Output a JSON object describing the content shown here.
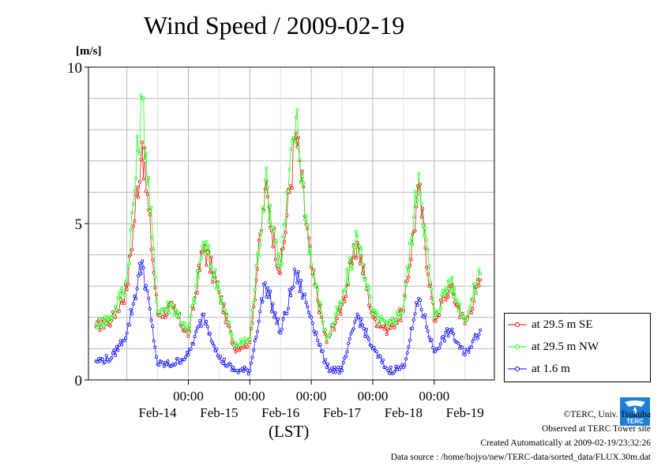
{
  "chart_data": {
    "type": "line",
    "title": "Wind Speed / 2009-02-19",
    "ylabel": "[m/s]",
    "xlabel": "(LST)",
    "ylim": [
      0,
      10
    ],
    "yticks": [
      "0",
      "5",
      "10"
    ],
    "xticks_time": [
      "00:00",
      "00:00",
      "00:00",
      "00:00",
      "00:00"
    ],
    "xticks_date": [
      "Feb-14",
      "Feb-15",
      "Feb-16",
      "Feb-17",
      "Feb-18",
      "Feb-19"
    ],
    "grid": true,
    "legend_position": "right",
    "x": [
      "Feb-13 12:00",
      "Feb-13 18:00",
      "Feb-14 00:00",
      "Feb-14 06:00",
      "Feb-14 12:00",
      "Feb-14 18:00",
      "Feb-15 00:00",
      "Feb-15 06:00",
      "Feb-15 12:00",
      "Feb-15 18:00",
      "Feb-16 00:00",
      "Feb-16 06:00",
      "Feb-16 12:00",
      "Feb-16 18:00",
      "Feb-17 00:00",
      "Feb-17 06:00",
      "Feb-17 12:00",
      "Feb-17 18:00",
      "Feb-18 00:00",
      "Feb-18 06:00",
      "Feb-18 12:00",
      "Feb-18 18:00",
      "Feb-19 00:00",
      "Feb-19 06:00",
      "Feb-19 12:00",
      "Feb-19 18:00"
    ],
    "series": [
      {
        "name": "at 29.5 m SE",
        "color": "#ff0000",
        "values": [
          1.7,
          1.9,
          2.9,
          7.6,
          2.1,
          2.3,
          1.4,
          4.3,
          2.8,
          1.0,
          1.2,
          6.1,
          3.4,
          7.9,
          3.6,
          1.2,
          2.4,
          4.4,
          2.0,
          1.6,
          2.2,
          6.1,
          1.9,
          3.0,
          1.8,
          3.2
        ]
      },
      {
        "name": "at 29.5 m NW",
        "color": "#00ff00",
        "values": [
          1.8,
          2.0,
          3.2,
          9.0,
          2.2,
          2.4,
          1.5,
          4.4,
          2.9,
          1.1,
          1.3,
          6.4,
          3.6,
          8.4,
          3.7,
          1.3,
          2.5,
          4.6,
          2.1,
          1.7,
          2.3,
          6.6,
          2.0,
          3.2,
          1.9,
          3.4
        ]
      },
      {
        "name": "at 1.6 m",
        "color": "#0000ff",
        "values": [
          0.6,
          0.7,
          1.5,
          3.8,
          0.5,
          0.5,
          0.8,
          2.1,
          0.7,
          0.3,
          0.3,
          3.1,
          1.5,
          3.4,
          2.0,
          0.4,
          0.3,
          2.1,
          1.0,
          0.3,
          0.4,
          2.6,
          0.9,
          1.6,
          0.8,
          1.6
        ]
      }
    ]
  },
  "footer": {
    "copyright": "©TERC, Univ. Tsukuba",
    "observed": "Observed at TERC Tower site",
    "created": "Created Automatically at 2009-02-19/23:32:26",
    "source": "Data source : /home/hojyo/new/TERC-data/sorted_data/FLUX.30m.dat"
  },
  "logo": {
    "text": "TERC",
    "color": "#1e7fd8"
  }
}
